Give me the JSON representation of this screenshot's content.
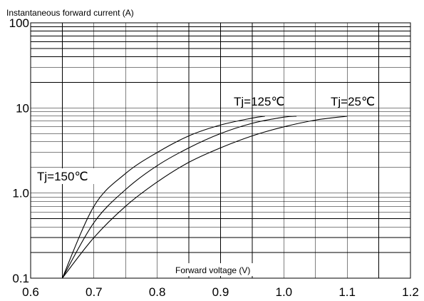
{
  "chart_data": {
    "type": "line",
    "title": "",
    "xlabel": "Forward voltage (V)",
    "ylabel": "Instantaneous forward current (A)",
    "xscale": "linear",
    "yscale": "log",
    "xlim": [
      0.6,
      1.2
    ],
    "ylim": [
      0.1,
      100
    ],
    "grid": true,
    "x_ticks": [
      "0.6",
      "0.7",
      "0.8",
      "0.9",
      "1.0",
      "1.1",
      "1.2"
    ],
    "y_ticks": [
      "0.1",
      "1.0",
      "10",
      "100"
    ],
    "series": [
      {
        "name": "Tj=150℃",
        "points": [
          [
            0.65,
            0.1
          ],
          [
            0.7,
            0.7
          ],
          [
            0.75,
            1.7
          ],
          [
            0.8,
            3.0
          ],
          [
            0.85,
            4.7
          ],
          [
            0.9,
            6.3
          ],
          [
            0.95,
            7.6
          ],
          [
            0.97,
            8.0
          ]
        ]
      },
      {
        "name": "Tj=125℃",
        "points": [
          [
            0.65,
            0.1
          ],
          [
            0.7,
            0.45
          ],
          [
            0.75,
            1.1
          ],
          [
            0.8,
            2.1
          ],
          [
            0.85,
            3.4
          ],
          [
            0.9,
            5.0
          ],
          [
            0.95,
            6.6
          ],
          [
            1.0,
            7.8
          ],
          [
            1.02,
            8.0
          ]
        ]
      },
      {
        "name": "Tj=25℃",
        "points": [
          [
            0.65,
            0.1
          ],
          [
            0.7,
            0.3
          ],
          [
            0.75,
            0.7
          ],
          [
            0.8,
            1.35
          ],
          [
            0.85,
            2.3
          ],
          [
            0.9,
            3.4
          ],
          [
            0.95,
            4.7
          ],
          [
            1.0,
            6.0
          ],
          [
            1.05,
            7.2
          ],
          [
            1.1,
            8.0
          ]
        ]
      }
    ],
    "annotations": [
      "Tj=125℃",
      "Tj=25℃",
      "Tj=150℃"
    ]
  }
}
